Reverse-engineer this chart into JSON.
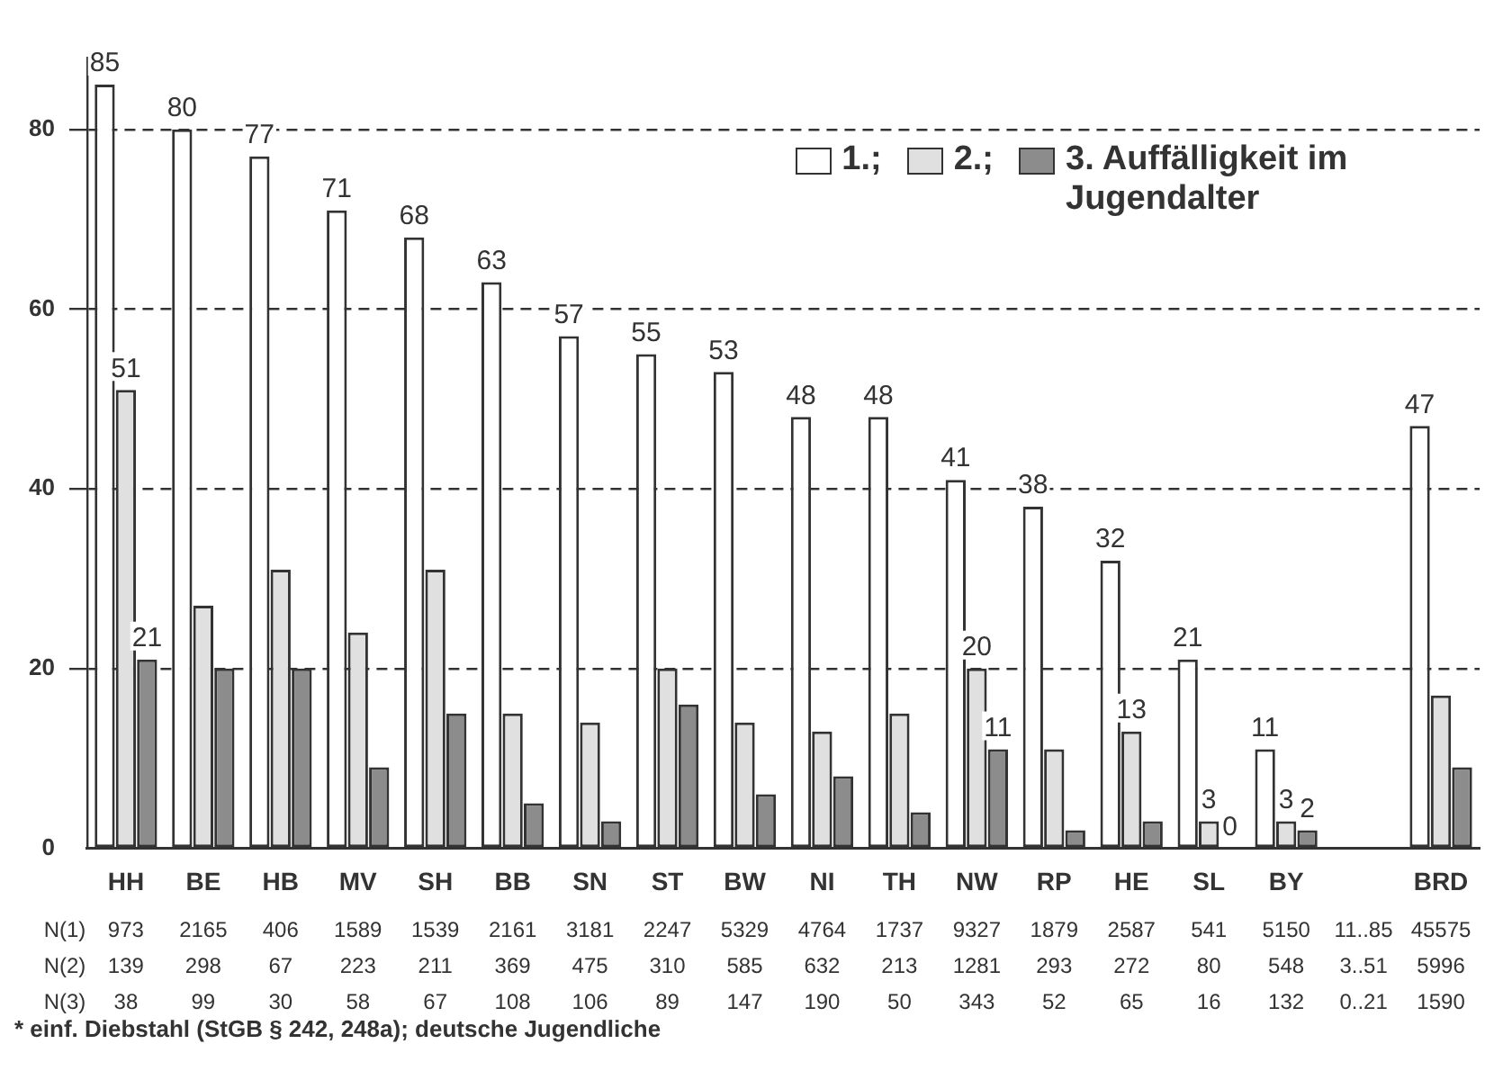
{
  "chart_data": {
    "type": "bar",
    "categories": [
      "HH",
      "BE",
      "HB",
      "MV",
      "SH",
      "BB",
      "SN",
      "ST",
      "BW",
      "NI",
      "TH",
      "NW",
      "RP",
      "HE",
      "SL",
      "BY",
      null,
      "BRD"
    ],
    "series": [
      {
        "name": "1.;",
        "color": "#ffffff",
        "values": [
          85,
          80,
          77,
          71,
          68,
          63,
          57,
          55,
          53,
          48,
          48,
          41,
          38,
          32,
          21,
          11,
          null,
          47
        ],
        "value_labels": [
          "85",
          "80",
          "77",
          "71",
          "68",
          "63",
          "57",
          "55",
          "53",
          "48",
          "48",
          "41",
          "38",
          "32",
          "21",
          "11",
          null,
          "47"
        ]
      },
      {
        "name": "2.;",
        "color": "#e0e0e0",
        "values": [
          51,
          27,
          31,
          24,
          31,
          15,
          14,
          20,
          14,
          13,
          15,
          20,
          11,
          13,
          3,
          3,
          null,
          17
        ],
        "value_labels": [
          "51",
          null,
          null,
          null,
          null,
          null,
          null,
          null,
          null,
          null,
          null,
          "20",
          null,
          "13",
          "3",
          "3",
          null,
          null
        ]
      },
      {
        "name": "3. Auffälligkeit im Jugendalter",
        "color": "#8c8c8c",
        "values": [
          21,
          20,
          20,
          9,
          15,
          5,
          3,
          16,
          6,
          8,
          4,
          11,
          2,
          3,
          0,
          2,
          null,
          9
        ],
        "value_labels": [
          "21",
          null,
          null,
          null,
          null,
          null,
          null,
          null,
          null,
          null,
          null,
          "11",
          null,
          null,
          "0",
          "2",
          null,
          null
        ]
      }
    ],
    "ylim": [
      0,
      88
    ],
    "yticks": [
      0,
      20,
      40,
      60,
      80
    ],
    "grid": "y",
    "legend": "top right",
    "annotations": [
      "N(1) 973 2165 406 1589 1539 2161 3181 2247 5329 4764 1737 9327 1879 2587 541 5150 11..85 45575",
      "N(2) 139 298 67 223 211 369 475 310 585 632 213 1281 293 272 80 548 3..51 5996",
      "N(3) 38 99 30 58 67 108 106 89 147 190 50 343 52 65 16 132 0..21 1590",
      "* einf. Diebstahl (StGB § 242, 248a); deutsche Jugendliche"
    ]
  }
}
